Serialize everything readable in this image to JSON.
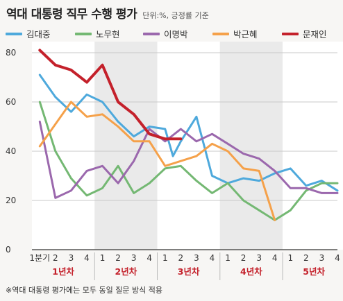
{
  "header": {
    "title": "역대 대통령 직무 수행 평가",
    "unit_note": "단위:%, 긍정률 기준"
  },
  "footnote": "※역대 대통령 평가에는 모두 동일 질문 방식 적용",
  "chart_data": {
    "type": "line",
    "title": "역대 대통령 직무 수행 평가",
    "ylim": [
      0,
      80
    ],
    "yticks": [
      0,
      20,
      40,
      60,
      80
    ],
    "grid": true,
    "legend_position": "top",
    "x_tick_labels": [
      "1분기",
      "2",
      "3",
      "4",
      "1",
      "2",
      "3",
      "4",
      "1",
      "2",
      "3",
      "4",
      "1",
      "2",
      "3",
      "4",
      "1",
      "2",
      "3",
      "4"
    ],
    "year_groups": [
      "1년차",
      "2년차",
      "3년차",
      "4년차",
      "5년차"
    ],
    "x_step": 0.5,
    "series": [
      {
        "name": "김대중",
        "color": "#4ea9dc",
        "width": 3,
        "points": [
          [
            1,
            71
          ],
          [
            2,
            62
          ],
          [
            3,
            56
          ],
          [
            4,
            63
          ],
          [
            5,
            60
          ],
          [
            6,
            52
          ],
          [
            7,
            46
          ],
          [
            8,
            50
          ],
          [
            9,
            49
          ],
          [
            9.5,
            38
          ],
          [
            10,
            44
          ],
          [
            11,
            54
          ],
          [
            12,
            30
          ],
          [
            13,
            27
          ],
          [
            14,
            29
          ],
          [
            15,
            28
          ],
          [
            16,
            31
          ],
          [
            17,
            33
          ],
          [
            18,
            26
          ],
          [
            19,
            28
          ],
          [
            20,
            24
          ]
        ]
      },
      {
        "name": "노무현",
        "color": "#74b873",
        "width": 3,
        "points": [
          [
            1,
            60
          ],
          [
            2,
            40
          ],
          [
            3,
            29
          ],
          [
            4,
            22
          ],
          [
            5,
            25
          ],
          [
            6,
            34
          ],
          [
            7,
            23
          ],
          [
            8,
            27
          ],
          [
            9,
            33
          ],
          [
            10,
            34
          ],
          [
            11,
            28
          ],
          [
            12,
            23
          ],
          [
            13,
            27
          ],
          [
            14,
            20
          ],
          [
            15,
            16
          ],
          [
            16,
            12
          ],
          [
            17,
            16
          ],
          [
            18,
            24
          ],
          [
            19,
            27
          ],
          [
            20,
            27
          ]
        ]
      },
      {
        "name": "이명박",
        "color": "#9b68ad",
        "width": 3,
        "points": [
          [
            1,
            52
          ],
          [
            2,
            21
          ],
          [
            3,
            24
          ],
          [
            4,
            32
          ],
          [
            5,
            34
          ],
          [
            6,
            27
          ],
          [
            7,
            36
          ],
          [
            8,
            49
          ],
          [
            9,
            44
          ],
          [
            10,
            49
          ],
          [
            11,
            44
          ],
          [
            12,
            47
          ],
          [
            13,
            43
          ],
          [
            14,
            39
          ],
          [
            15,
            37
          ],
          [
            16,
            32
          ],
          [
            17,
            25
          ],
          [
            18,
            25
          ],
          [
            19,
            23
          ],
          [
            20,
            23
          ]
        ]
      },
      {
        "name": "박근혜",
        "color": "#f5a14a",
        "width": 3,
        "points": [
          [
            1,
            42
          ],
          [
            2,
            51
          ],
          [
            3,
            60
          ],
          [
            4,
            54
          ],
          [
            5,
            55
          ],
          [
            6,
            50
          ],
          [
            7,
            44
          ],
          [
            8,
            44
          ],
          [
            9,
            34
          ],
          [
            10,
            36
          ],
          [
            11,
            38
          ],
          [
            12,
            43
          ],
          [
            13,
            40
          ],
          [
            14,
            33
          ],
          [
            15,
            32
          ],
          [
            16,
            12
          ]
        ]
      },
      {
        "name": "문재인",
        "color": "#c4212b",
        "width": 4,
        "points": [
          [
            1,
            81
          ],
          [
            2,
            75
          ],
          [
            3,
            73
          ],
          [
            4,
            68
          ],
          [
            5,
            75
          ],
          [
            6,
            60
          ],
          [
            7,
            55
          ],
          [
            8,
            47
          ],
          [
            9,
            45
          ],
          [
            10,
            45
          ]
        ]
      }
    ]
  }
}
